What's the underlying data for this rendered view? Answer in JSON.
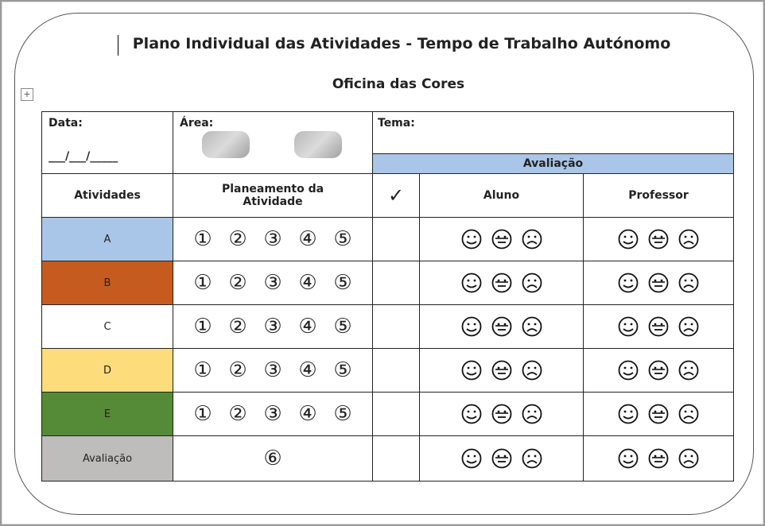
{
  "header": {
    "title": "Plano Individual das Atividades - Tempo de Trabalho Autónomo",
    "subtitle": "Oficina das Cores"
  },
  "table": {
    "date_label": "Data:",
    "date_blank": "___/___/_____",
    "area_label": "Área:",
    "theme_label": "Tema:",
    "evaluation_header": "Avaliação",
    "columns": [
      "Atividades",
      "Planeamento da Atividade",
      "✓",
      "Aluno",
      "Professor"
    ],
    "rows": [
      {
        "label": "A",
        "planning": [
          "①",
          "②",
          "③",
          "④",
          "⑤"
        ]
      },
      {
        "label": "B",
        "planning": [
          "①",
          "②",
          "③",
          "④",
          "⑤"
        ]
      },
      {
        "label": "C",
        "planning": [
          "①",
          "②",
          "③",
          "④",
          "⑤"
        ]
      },
      {
        "label": "D",
        "planning": [
          "①",
          "②",
          "③",
          "④",
          "⑤"
        ]
      },
      {
        "label": "E",
        "planning": [
          "①",
          "②",
          "③",
          "④",
          "⑤"
        ]
      },
      {
        "label": "Avaliação",
        "planning": [
          "⑥"
        ]
      }
    ]
  }
}
